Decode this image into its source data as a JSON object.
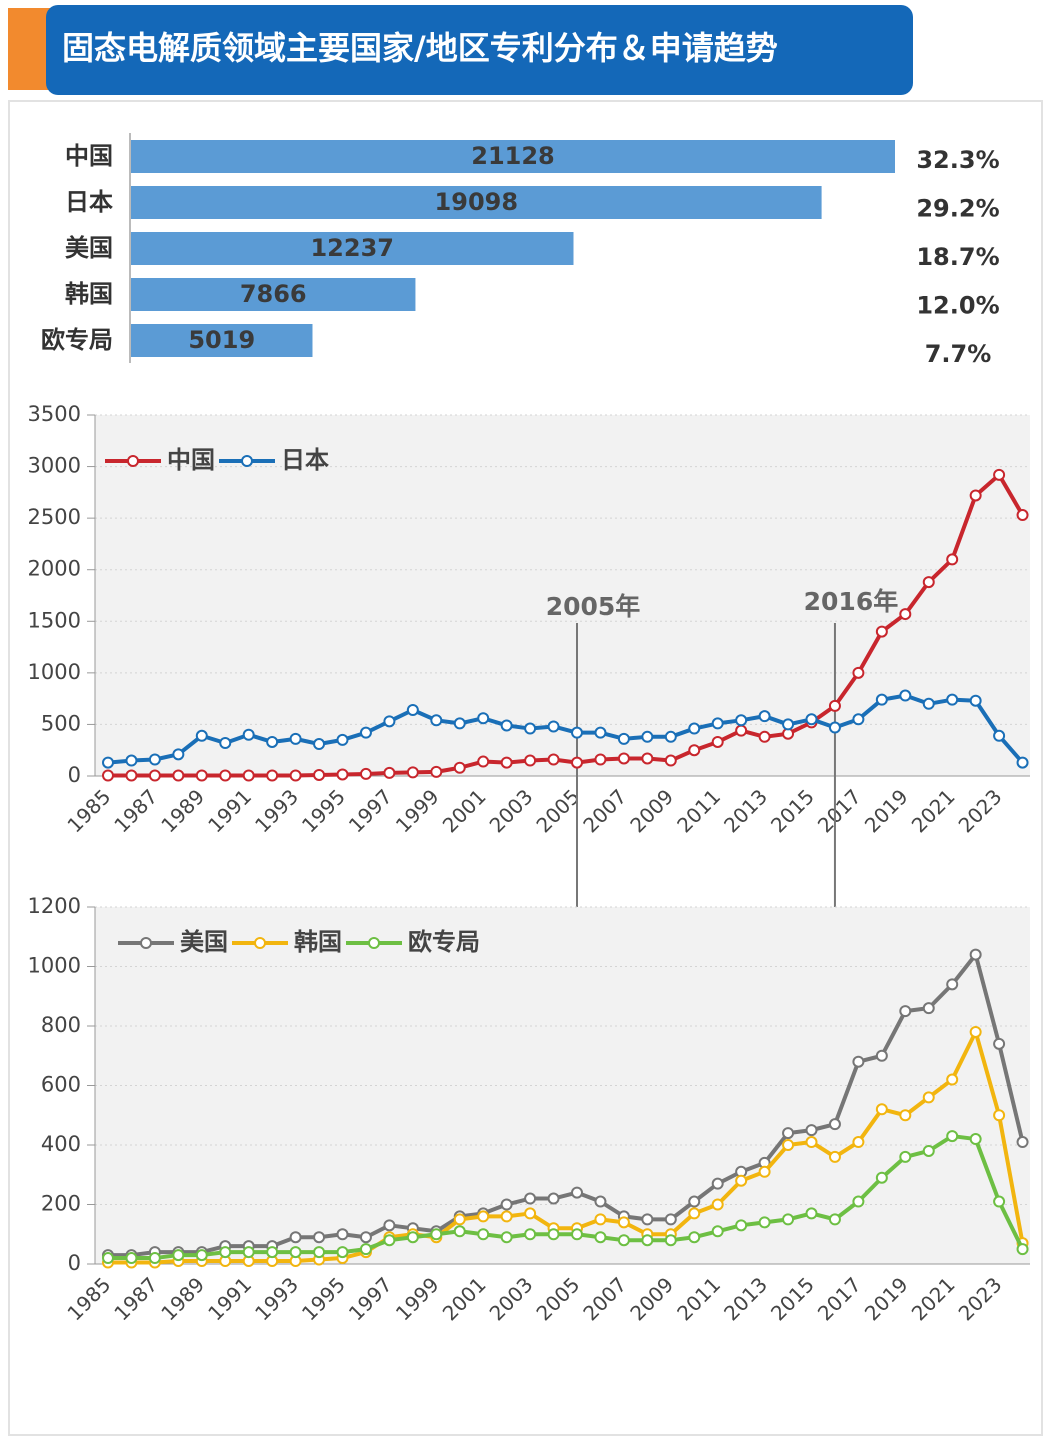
{
  "title": "固态电解质领域主要国家/地区专利分布＆申请趋势",
  "chart_data": [
    {
      "type": "hbar",
      "categories": [
        "中国",
        "日本",
        "美国",
        "韩国",
        "欧专局"
      ],
      "values": [
        21128,
        19098,
        12237,
        7866,
        5019
      ],
      "color": "#5b9bd5",
      "percents": [
        32.3,
        29.2,
        18.7,
        12.0,
        7.7
      ],
      "percent_labels": [
        "32.3%",
        "29.2%",
        "18.7%",
        "12.0%",
        "7.7%"
      ]
    },
    {
      "type": "line",
      "categories": [
        "1985",
        null,
        "1987",
        null,
        "1989",
        null,
        "1991",
        null,
        "1993",
        null,
        "1995",
        null,
        "1997",
        null,
        "1999",
        null,
        "2001",
        null,
        "2003",
        null,
        "2005",
        null,
        "2007",
        null,
        "2009",
        null,
        "2011",
        null,
        "2013",
        null,
        "2015",
        null,
        "2017",
        null,
        "2019",
        null,
        "2021",
        null,
        "2023",
        null
      ],
      "series": [
        {
          "name": "中国",
          "color": "#c8262d",
          "values": [
            5,
            5,
            5,
            5,
            5,
            5,
            5,
            5,
            5,
            10,
            15,
            20,
            30,
            35,
            40,
            80,
            140,
            130,
            150,
            160,
            130,
            160,
            170,
            170,
            150,
            250,
            330,
            440,
            380,
            410,
            520,
            680,
            1000,
            1400,
            1570,
            1880,
            2100,
            2720,
            2920,
            2530
          ]
        },
        {
          "name": "日本",
          "color": "#1a6fb7",
          "values": [
            130,
            150,
            160,
            210,
            390,
            320,
            400,
            330,
            360,
            310,
            350,
            420,
            530,
            640,
            540,
            510,
            560,
            490,
            460,
            480,
            420,
            420,
            360,
            380,
            380,
            460,
            510,
            540,
            580,
            500,
            550,
            470,
            550,
            740,
            780,
            700,
            740,
            730,
            390,
            130
          ]
        }
      ],
      "ylim": [
        0,
        3500
      ],
      "yticks": [
        0,
        500,
        1000,
        1500,
        2000,
        2500,
        3000,
        3500
      ],
      "grid": true,
      "legend": "upper left",
      "annotations": [
        {
          "text": "2005年",
          "x": 2005
        },
        {
          "text": "2016年",
          "x": 2016
        }
      ]
    },
    {
      "type": "line",
      "categories": [
        "1985",
        null,
        "1987",
        null,
        "1989",
        null,
        "1991",
        null,
        "1993",
        null,
        "1995",
        null,
        "1997",
        null,
        "1999",
        null,
        "2001",
        null,
        "2003",
        null,
        "2005",
        null,
        "2007",
        null,
        "2009",
        null,
        "2011",
        null,
        "2013",
        null,
        "2015",
        null,
        "2017",
        null,
        "2019",
        null,
        "2021",
        null,
        "2023",
        null
      ],
      "series": [
        {
          "name": "美国",
          "color": "#767676",
          "values": [
            30,
            30,
            40,
            40,
            40,
            60,
            60,
            60,
            90,
            90,
            100,
            90,
            130,
            120,
            110,
            160,
            170,
            200,
            220,
            220,
            240,
            210,
            160,
            150,
            150,
            210,
            270,
            310,
            340,
            440,
            450,
            470,
            680,
            700,
            850,
            860,
            940,
            1040,
            740,
            410
          ]
        },
        {
          "name": "韩国",
          "color": "#f2b50f",
          "values": [
            5,
            5,
            5,
            10,
            10,
            10,
            10,
            10,
            10,
            15,
            20,
            40,
            90,
            100,
            90,
            150,
            160,
            160,
            170,
            120,
            120,
            150,
            140,
            100,
            100,
            170,
            200,
            280,
            310,
            400,
            410,
            360,
            410,
            520,
            500,
            560,
            620,
            780,
            500,
            70
          ]
        },
        {
          "name": "欧专局",
          "color": "#6dbf43",
          "values": [
            20,
            20,
            20,
            30,
            30,
            40,
            40,
            40,
            40,
            40,
            40,
            50,
            80,
            90,
            100,
            110,
            100,
            90,
            100,
            100,
            100,
            90,
            80,
            80,
            80,
            90,
            110,
            130,
            140,
            150,
            170,
            150,
            210,
            290,
            360,
            380,
            430,
            420,
            210,
            50
          ]
        }
      ],
      "ylim": [
        0,
        1200
      ],
      "yticks": [
        0,
        200,
        400,
        600,
        800,
        1000,
        1200
      ],
      "grid": true,
      "legend": "upper left"
    }
  ]
}
